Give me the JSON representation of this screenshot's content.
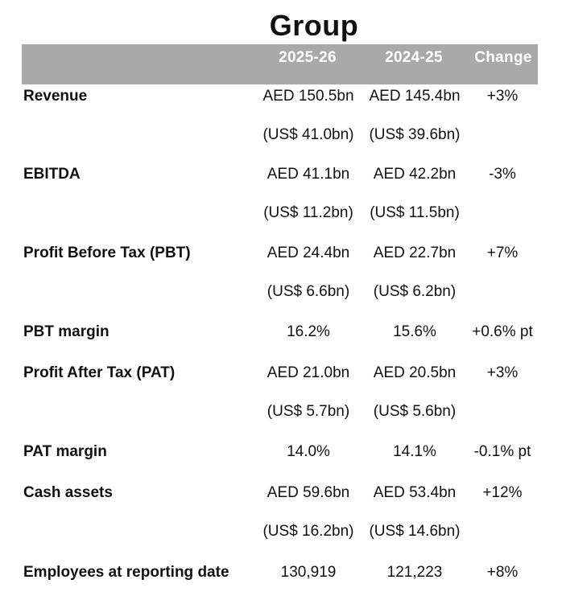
{
  "title": "Group",
  "headers": [
    "2025-26",
    "2024-25",
    "Change"
  ],
  "rows": [
    {
      "label": "Revenue",
      "current": "AED 150.5bn",
      "previous": "AED 145.4bn",
      "change": "+3%"
    },
    {
      "label": "",
      "current": "(US$ 41.0bn)",
      "previous": "(US$ 39.6bn)",
      "change": ""
    },
    {
      "label": "EBITDA",
      "current": "AED 41.1bn",
      "previous": "AED 42.2bn",
      "change": "-3%"
    },
    {
      "label": "",
      "current": "(US$ 11.2bn)",
      "previous": "(US$ 11.5bn)",
      "change": ""
    },
    {
      "label": "Profit Before Tax (PBT)",
      "current": "AED 24.4bn",
      "previous": "AED 22.7bn",
      "change": "+7%"
    },
    {
      "label": "",
      "current": "(US$ 6.6bn)",
      "previous": "(US$ 6.2bn)",
      "change": ""
    },
    {
      "label": "PBT margin",
      "current": "16.2%",
      "previous": "15.6%",
      "change": "+0.6% pt"
    },
    {
      "label": "Profit After Tax (PAT)",
      "current": "AED 21.0bn",
      "previous": "AED 20.5bn",
      "change": "+3%"
    },
    {
      "label": "",
      "current": "(US$ 5.7bn)",
      "previous": "(US$ 5.6bn)",
      "change": ""
    },
    {
      "label": "PAT margin",
      "current": "14.0%",
      "previous": "14.1%",
      "change": "-0.1% pt"
    },
    {
      "label": "Cash assets",
      "current": "AED 59.6bn",
      "previous": "AED 53.4bn",
      "change": "+12%"
    },
    {
      "label": "",
      "current": "(US$ 16.2bn)",
      "previous": "(US$ 14.6bn)",
      "change": ""
    },
    {
      "label": "Employees at reporting date",
      "current": "130,919",
      "previous": "121,223",
      "change": "+8%"
    }
  ],
  "colors": {
    "header_band": "#a9a9a9",
    "header_text": "#ffffff",
    "body_text": "#111111"
  }
}
